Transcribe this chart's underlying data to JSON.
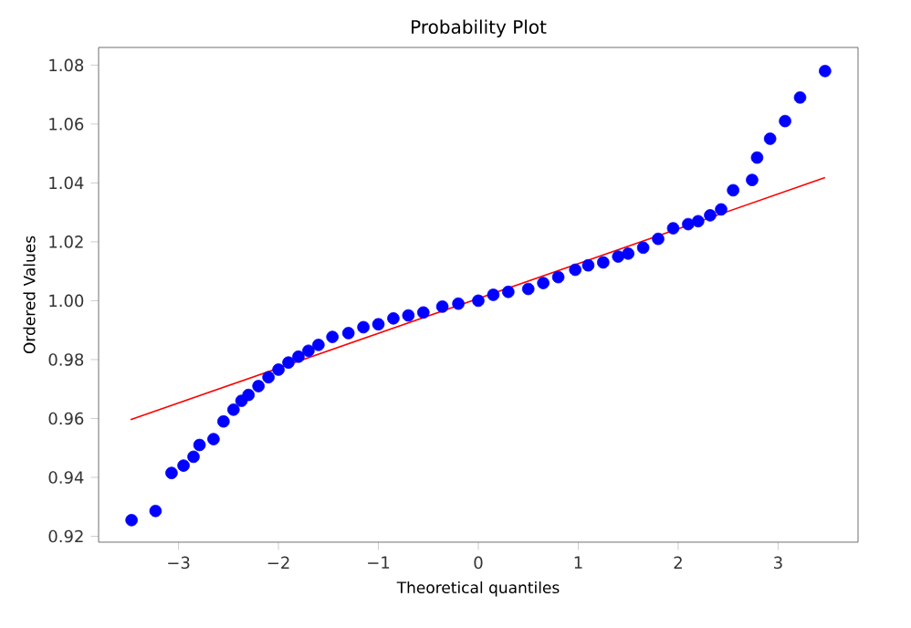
{
  "chart_data": {
    "type": "scatter",
    "title": "Probability Plot",
    "xlabel": "Theoretical quantiles",
    "ylabel": "Ordered Values",
    "xlim": [
      -3.8,
      3.8
    ],
    "ylim": [
      0.918,
      1.086
    ],
    "xticks": [
      {
        "value": -3,
        "label": "−3"
      },
      {
        "value": -2,
        "label": "−2"
      },
      {
        "value": -1,
        "label": "−1"
      },
      0,
      1,
      2,
      3
    ],
    "yticks": [
      {
        "value": 0.92,
        "label": "0.92"
      },
      {
        "value": 0.94,
        "label": "0.94"
      },
      {
        "value": 0.96,
        "label": "0.96"
      },
      {
        "value": 0.98,
        "label": "0.98"
      },
      {
        "value": 1.0,
        "label": "1.00"
      },
      {
        "value": 1.02,
        "label": "1.02"
      },
      {
        "value": 1.04,
        "label": "1.04"
      },
      {
        "value": 1.06,
        "label": "1.06"
      },
      {
        "value": 1.08,
        "label": "1.08"
      }
    ],
    "marker": "circle",
    "grid": false,
    "series": [
      {
        "color": "#0000ff",
        "x": [
          -3.47,
          -3.23,
          -3.07,
          -2.95,
          -2.85,
          -2.79,
          -2.65,
          -2.55,
          -2.45,
          -2.37,
          -2.3,
          -2.2,
          -2.1,
          -2.0,
          -1.9,
          -1.8,
          -1.7,
          -1.6,
          -1.46,
          -1.3,
          -1.15,
          -1.0,
          -0.85,
          -0.7,
          -0.55,
          -0.36,
          -0.2,
          0.0,
          0.15,
          0.3,
          0.5,
          0.65,
          0.8,
          0.97,
          1.1,
          1.25,
          1.4,
          1.5,
          1.65,
          1.8,
          1.95,
          2.1,
          2.2,
          2.32,
          2.43,
          2.55,
          2.74,
          2.79,
          2.92,
          3.07,
          3.22,
          3.47
        ],
        "values": [
          0.9255,
          0.9286,
          0.9415,
          0.944,
          0.947,
          0.951,
          0.953,
          0.959,
          0.963,
          0.966,
          0.968,
          0.971,
          0.974,
          0.9766,
          0.979,
          0.981,
          0.983,
          0.985,
          0.9877,
          0.989,
          0.991,
          0.992,
          0.994,
          0.995,
          0.996,
          0.998,
          0.999,
          1.0,
          1.002,
          1.003,
          1.004,
          1.006,
          1.008,
          1.0105,
          1.012,
          1.013,
          1.015,
          1.016,
          1.018,
          1.021,
          1.0246,
          1.026,
          1.027,
          1.029,
          1.031,
          1.0375,
          1.041,
          1.0486,
          1.055,
          1.061,
          1.069,
          1.078
        ]
      },
      {
        "type": "line",
        "color": "#ff0000",
        "marker": "none",
        "x": [
          -3.48,
          3.47
        ],
        "values": [
          0.9596,
          1.0418
        ]
      }
    ]
  }
}
